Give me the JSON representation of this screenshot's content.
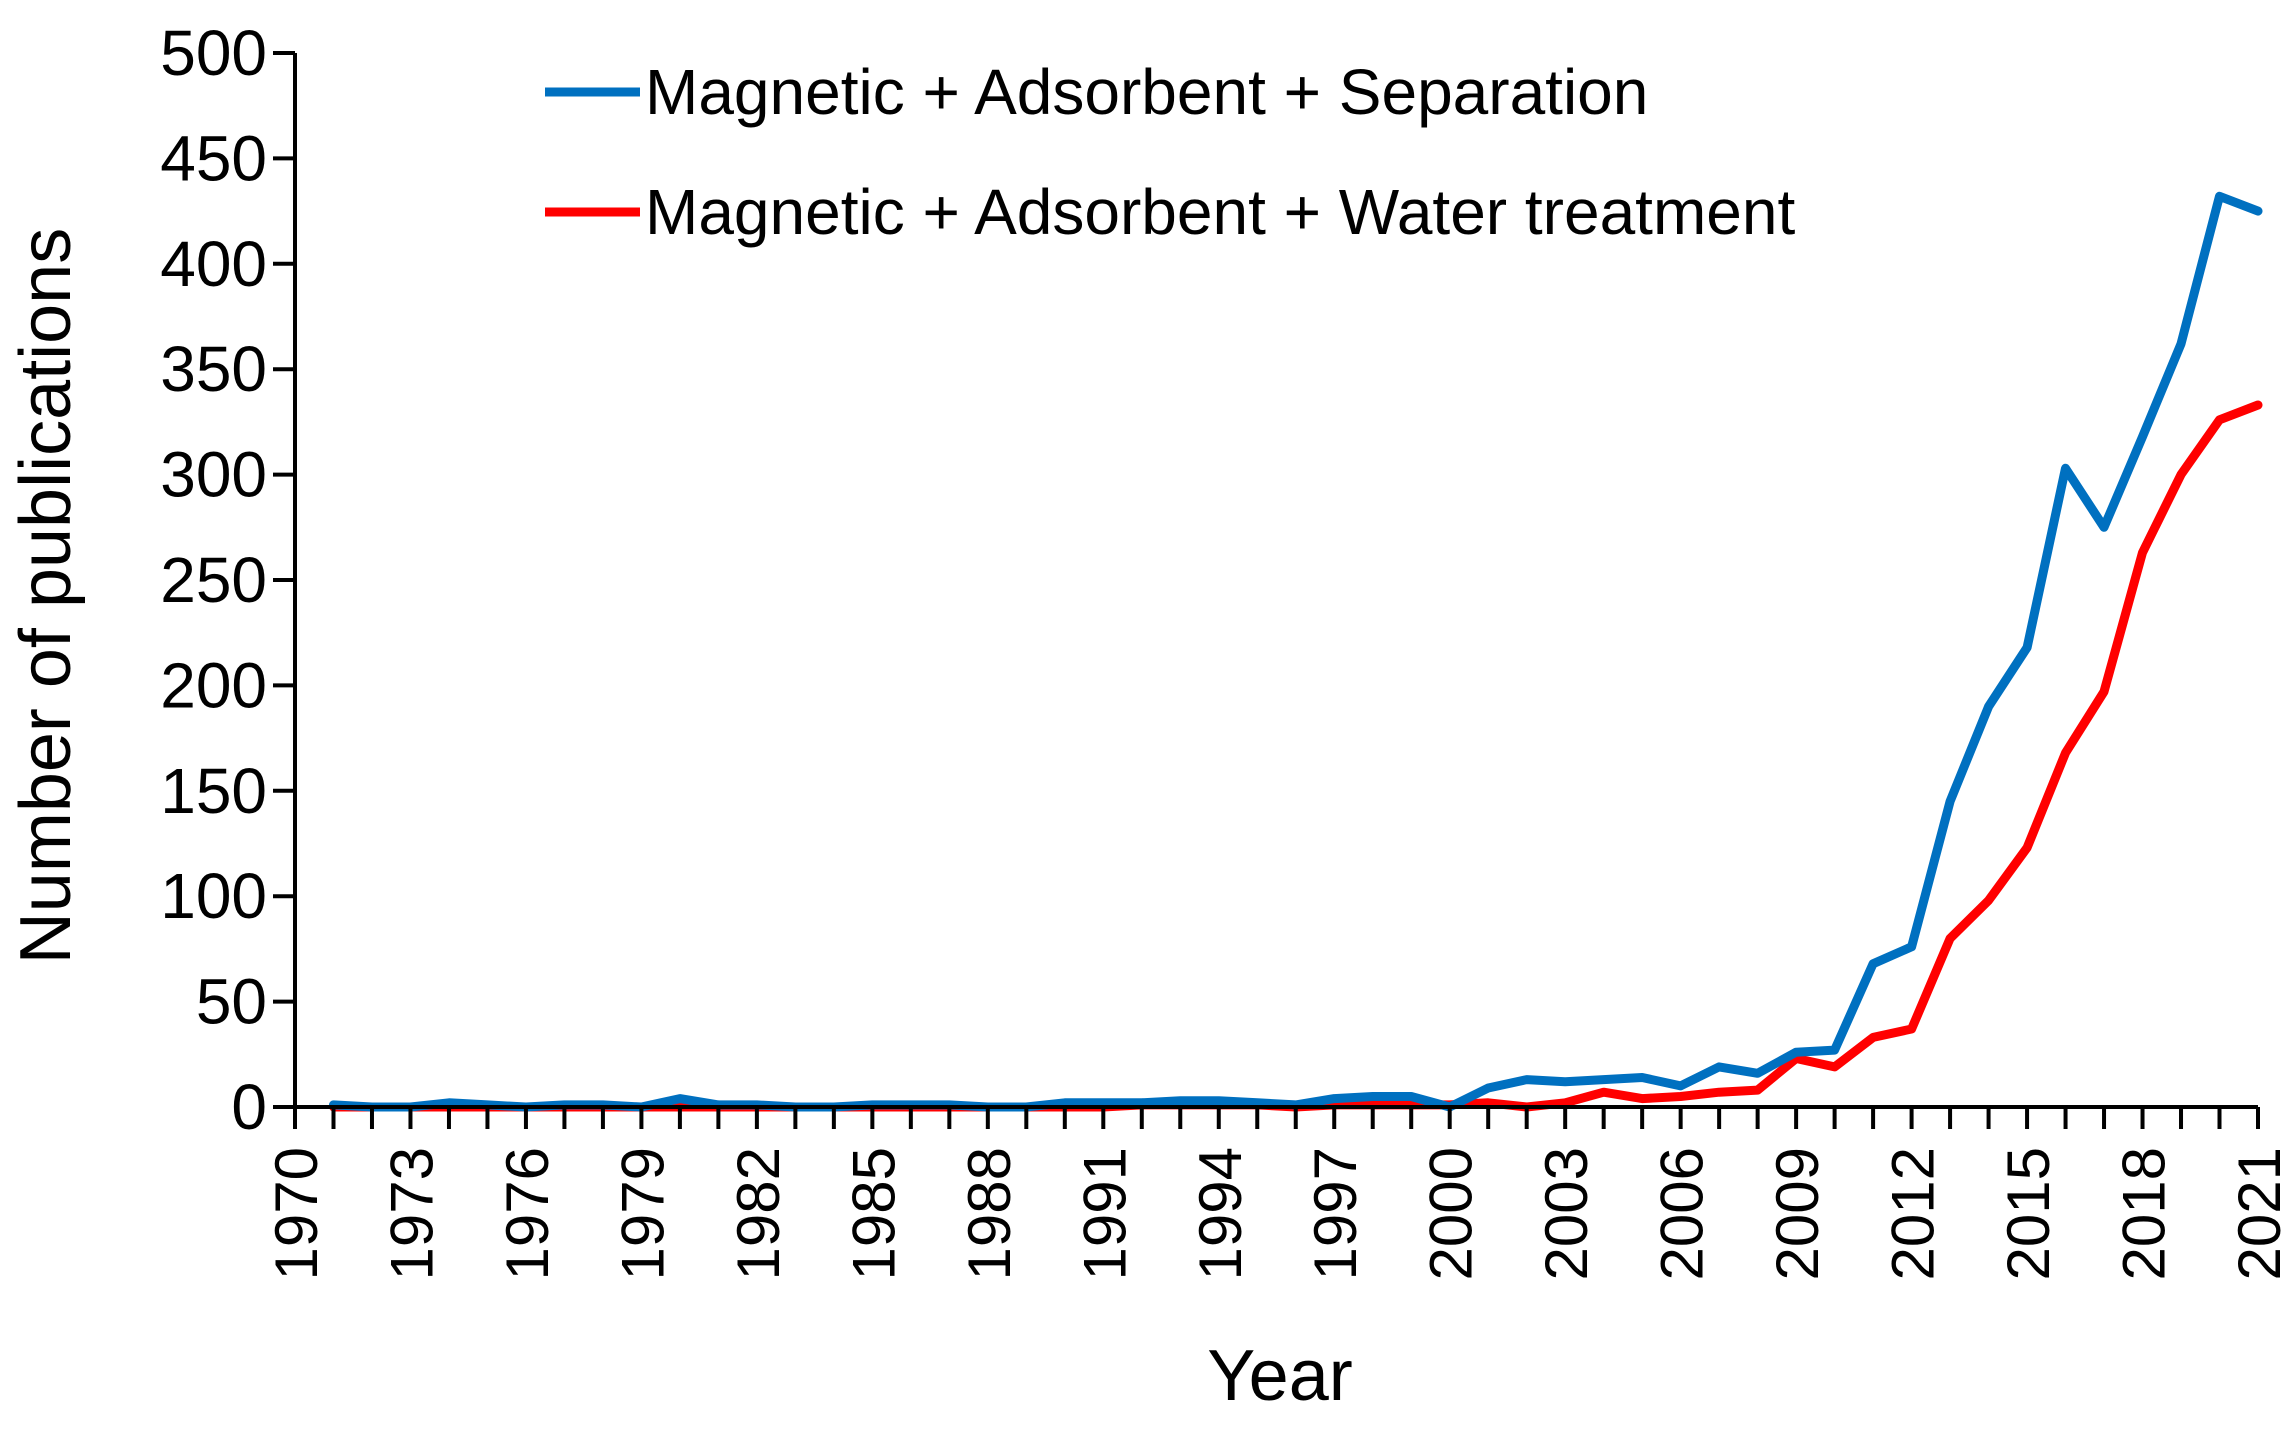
{
  "chart_data": {
    "type": "line",
    "title": "",
    "xlabel": "Year",
    "ylabel": "Number of publications",
    "xlim": [
      1970,
      2021
    ],
    "ylim": [
      0,
      500
    ],
    "yticks": [
      0,
      50,
      100,
      150,
      200,
      250,
      300,
      350,
      400,
      450,
      500
    ],
    "xtick_labels": [
      "1970",
      "1973",
      "1976",
      "1979",
      "1982",
      "1985",
      "1988",
      "1991",
      "1994",
      "1997",
      "2000",
      "2003",
      "2006",
      "2009",
      "2012",
      "2015",
      "2018",
      "2021"
    ],
    "grid": false,
    "legend_position": "top",
    "x": [
      1971,
      1972,
      1973,
      1974,
      1975,
      1976,
      1977,
      1978,
      1979,
      1980,
      1981,
      1982,
      1983,
      1984,
      1985,
      1986,
      1987,
      1988,
      1989,
      1990,
      1991,
      1992,
      1993,
      1994,
      1995,
      1996,
      1997,
      1998,
      1999,
      2000,
      2001,
      2002,
      2003,
      2004,
      2005,
      2006,
      2007,
      2008,
      2009,
      2010,
      2011,
      2012,
      2013,
      2014,
      2015,
      2016,
      2017,
      2018,
      2019,
      2020,
      2021
    ],
    "series": [
      {
        "name": "Magnetic + Adsorbent + Separation",
        "color": "#0070C0",
        "values": [
          1,
          0,
          0,
          2,
          1,
          0,
          1,
          1,
          0,
          4,
          1,
          1,
          0,
          0,
          1,
          1,
          1,
          0,
          0,
          2,
          2,
          2,
          3,
          3,
          2,
          1,
          4,
          5,
          5,
          0,
          9,
          13,
          12,
          13,
          14,
          10,
          19,
          16,
          26,
          27,
          68,
          76,
          145,
          190,
          218,
          303,
          275,
          318,
          362,
          432,
          425
        ]
      },
      {
        "name": "Magnetic + Adsorbent + Water treatment",
        "color": "#FF0000",
        "values": [
          0,
          0,
          0,
          0,
          0,
          0,
          0,
          0,
          0,
          0,
          0,
          0,
          0,
          0,
          0,
          0,
          0,
          0,
          0,
          0,
          0,
          1,
          1,
          1,
          1,
          0,
          1,
          1,
          1,
          1,
          2,
          0,
          2,
          7,
          4,
          5,
          7,
          8,
          23,
          19,
          33,
          37,
          80,
          98,
          123,
          168,
          197,
          263,
          300,
          326,
          333
        ]
      }
    ]
  }
}
